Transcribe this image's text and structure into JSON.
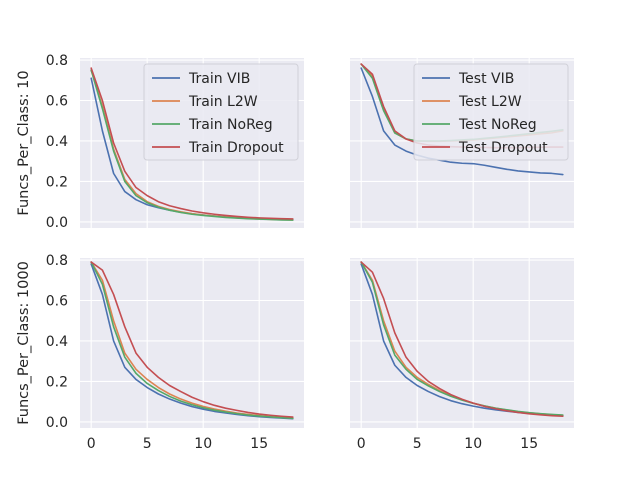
{
  "chart_data": [
    {
      "type": "line",
      "ylabel": "Funcs_Per_Class: 10",
      "xlim": [
        -1,
        19
      ],
      "ylim": [
        -0.03,
        0.81
      ],
      "x_ticks": [
        "0",
        "5",
        "10",
        "15"
      ],
      "y_ticks": [
        "0.0",
        "0.2",
        "0.4",
        "0.6",
        "0.8"
      ],
      "show_xtick_labels": false,
      "show_ytick_labels": true,
      "grid": true,
      "legend": "upper-right",
      "x": [
        0,
        1,
        2,
        3,
        4,
        5,
        6,
        7,
        8,
        9,
        10,
        11,
        12,
        13,
        14,
        15,
        16,
        17,
        18
      ],
      "series": [
        {
          "name": "Train VIB",
          "color": "#4c72b0",
          "values": [
            0.71,
            0.45,
            0.24,
            0.15,
            0.11,
            0.085,
            0.07,
            0.058,
            0.048,
            0.04,
            0.034,
            0.029,
            0.025,
            0.021,
            0.018,
            0.016,
            0.014,
            0.012,
            0.011
          ]
        },
        {
          "name": "Train L2W",
          "color": "#dd8452",
          "values": [
            0.75,
            0.57,
            0.36,
            0.21,
            0.14,
            0.1,
            0.077,
            0.061,
            0.05,
            0.041,
            0.034,
            0.029,
            0.024,
            0.02,
            0.017,
            0.015,
            0.013,
            0.011,
            0.01
          ]
        },
        {
          "name": "Train NoReg",
          "color": "#55a868",
          "values": [
            0.75,
            0.56,
            0.35,
            0.2,
            0.13,
            0.095,
            0.073,
            0.058,
            0.047,
            0.038,
            0.032,
            0.027,
            0.022,
            0.019,
            0.016,
            0.014,
            0.012,
            0.01,
            0.009
          ]
        },
        {
          "name": "Train Dropout",
          "color": "#c44e52",
          "values": [
            0.76,
            0.6,
            0.39,
            0.25,
            0.17,
            0.13,
            0.1,
            0.08,
            0.066,
            0.054,
            0.045,
            0.038,
            0.032,
            0.027,
            0.023,
            0.02,
            0.018,
            0.016,
            0.015
          ]
        }
      ]
    },
    {
      "type": "line",
      "ylabel": "",
      "xlim": [
        -1,
        19
      ],
      "ylim": [
        -0.03,
        0.81
      ],
      "x_ticks": [
        "0",
        "5",
        "10",
        "15"
      ],
      "y_ticks": [
        "0.0",
        "0.2",
        "0.4",
        "0.6",
        "0.8"
      ],
      "show_xtick_labels": false,
      "show_ytick_labels": false,
      "grid": true,
      "legend": "upper-right",
      "x": [
        0,
        1,
        2,
        3,
        4,
        5,
        6,
        7,
        8,
        9,
        10,
        11,
        12,
        13,
        14,
        15,
        16,
        17,
        18
      ],
      "series": [
        {
          "name": "Test VIB",
          "color": "#4c72b0",
          "values": [
            0.76,
            0.62,
            0.45,
            0.38,
            0.35,
            0.33,
            0.315,
            0.305,
            0.295,
            0.29,
            0.288,
            0.28,
            0.27,
            0.26,
            0.252,
            0.247,
            0.242,
            0.24,
            0.234
          ]
        },
        {
          "name": "Test L2W",
          "color": "#dd8452",
          "values": [
            0.78,
            0.72,
            0.56,
            0.44,
            0.41,
            0.4,
            0.398,
            0.398,
            0.4,
            0.402,
            0.405,
            0.41,
            0.415,
            0.42,
            0.425,
            0.43,
            0.435,
            0.44,
            0.45
          ]
        },
        {
          "name": "Test NoReg",
          "color": "#55a868",
          "values": [
            0.78,
            0.71,
            0.55,
            0.44,
            0.41,
            0.4,
            0.4,
            0.4,
            0.402,
            0.405,
            0.408,
            0.413,
            0.418,
            0.424,
            0.43,
            0.436,
            0.442,
            0.448,
            0.455
          ]
        },
        {
          "name": "Test Dropout",
          "color": "#c44e52",
          "values": [
            0.78,
            0.73,
            0.57,
            0.45,
            0.41,
            0.39,
            0.38,
            0.375,
            0.372,
            0.37,
            0.368,
            0.368,
            0.367,
            0.367,
            0.367,
            0.368,
            0.369,
            0.37,
            0.37
          ]
        }
      ]
    },
    {
      "type": "line",
      "ylabel": "Funcs_Per_Class: 1000",
      "xlim": [
        -1,
        19
      ],
      "ylim": [
        -0.03,
        0.81
      ],
      "x_ticks": [
        "0",
        "5",
        "10",
        "15"
      ],
      "y_ticks": [
        "0.0",
        "0.2",
        "0.4",
        "0.6",
        "0.8"
      ],
      "show_xtick_labels": true,
      "show_ytick_labels": true,
      "grid": true,
      "legend": "none",
      "x": [
        0,
        1,
        2,
        3,
        4,
        5,
        6,
        7,
        8,
        9,
        10,
        11,
        12,
        13,
        14,
        15,
        16,
        17,
        18
      ],
      "series": [
        {
          "name": "",
          "color": "#4c72b0",
          "values": [
            0.78,
            0.63,
            0.4,
            0.27,
            0.21,
            0.17,
            0.138,
            0.113,
            0.093,
            0.076,
            0.063,
            0.052,
            0.044,
            0.037,
            0.031,
            0.026,
            0.022,
            0.019,
            0.016
          ]
        },
        {
          "name": "",
          "color": "#dd8452",
          "values": [
            0.79,
            0.7,
            0.5,
            0.34,
            0.26,
            0.21,
            0.17,
            0.138,
            0.113,
            0.093,
            0.077,
            0.064,
            0.053,
            0.044,
            0.037,
            0.031,
            0.026,
            0.022,
            0.019
          ]
        },
        {
          "name": "",
          "color": "#55a868",
          "values": [
            0.79,
            0.68,
            0.47,
            0.32,
            0.24,
            0.19,
            0.155,
            0.126,
            0.103,
            0.085,
            0.07,
            0.058,
            0.049,
            0.041,
            0.034,
            0.029,
            0.025,
            0.021,
            0.018
          ]
        },
        {
          "name": "",
          "color": "#c44e52",
          "values": [
            0.79,
            0.75,
            0.63,
            0.47,
            0.34,
            0.27,
            0.22,
            0.18,
            0.15,
            0.122,
            0.1,
            0.082,
            0.068,
            0.057,
            0.047,
            0.039,
            0.033,
            0.028,
            0.024
          ]
        }
      ]
    },
    {
      "type": "line",
      "ylabel": "",
      "xlim": [
        -1,
        19
      ],
      "ylim": [
        -0.03,
        0.81
      ],
      "x_ticks": [
        "0",
        "5",
        "10",
        "15"
      ],
      "y_ticks": [
        "0.0",
        "0.2",
        "0.4",
        "0.6",
        "0.8"
      ],
      "show_xtick_labels": true,
      "show_ytick_labels": false,
      "grid": true,
      "legend": "none",
      "x": [
        0,
        1,
        2,
        3,
        4,
        5,
        6,
        7,
        8,
        9,
        10,
        11,
        12,
        13,
        14,
        15,
        16,
        17,
        18
      ],
      "series": [
        {
          "name": "",
          "color": "#4c72b0",
          "values": [
            0.78,
            0.63,
            0.4,
            0.28,
            0.22,
            0.18,
            0.15,
            0.125,
            0.105,
            0.09,
            0.078,
            0.068,
            0.06,
            0.053,
            0.047,
            0.042,
            0.038,
            0.035,
            0.032
          ]
        },
        {
          "name": "",
          "color": "#dd8452",
          "values": [
            0.79,
            0.7,
            0.5,
            0.35,
            0.27,
            0.22,
            0.185,
            0.155,
            0.13,
            0.11,
            0.093,
            0.079,
            0.068,
            0.059,
            0.051,
            0.045,
            0.04,
            0.036,
            0.033
          ]
        },
        {
          "name": "",
          "color": "#55a868",
          "values": [
            0.79,
            0.69,
            0.48,
            0.33,
            0.26,
            0.21,
            0.178,
            0.15,
            0.127,
            0.108,
            0.092,
            0.079,
            0.068,
            0.06,
            0.052,
            0.046,
            0.041,
            0.037,
            0.034
          ]
        },
        {
          "name": "",
          "color": "#c44e52",
          "values": [
            0.79,
            0.74,
            0.61,
            0.44,
            0.32,
            0.25,
            0.2,
            0.165,
            0.135,
            0.112,
            0.093,
            0.077,
            0.065,
            0.055,
            0.047,
            0.04,
            0.035,
            0.031,
            0.028
          ]
        }
      ]
    }
  ]
}
